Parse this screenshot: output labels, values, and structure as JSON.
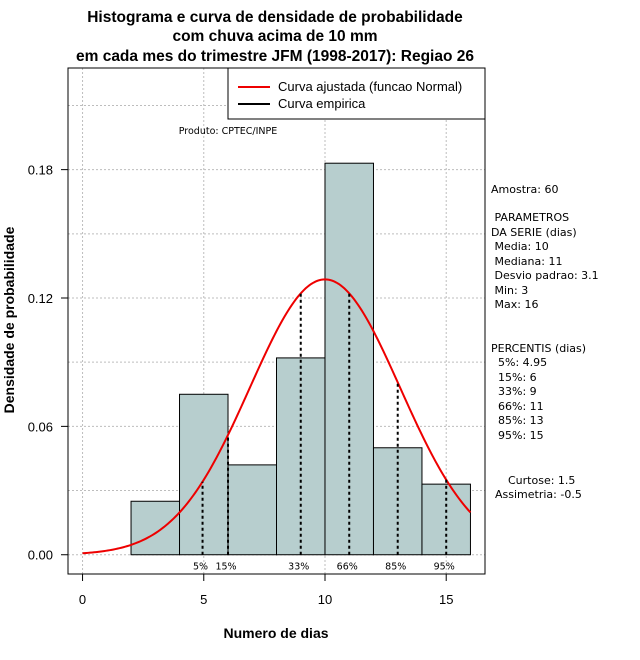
{
  "chart_data": {
    "type": "bar",
    "title_lines": [
      "Histograma e curva de densidade de probabilidade",
      "com chuva acima de 10 mm",
      "em cada mes do trimestre JFM (1998-2017): Regiao 26"
    ],
    "xlabel": "Numero de dias",
    "ylabel": "Densidade de probabilidade",
    "xlim": [
      -0.6,
      16.6
    ],
    "ylim": [
      -0.009,
      0.2275
    ],
    "x_ticks": [
      0,
      5,
      10,
      15
    ],
    "y_ticks": [
      0.0,
      0.06,
      0.12,
      0.18
    ],
    "y_tick_labels": [
      "0.00",
      "0.06",
      "0.12",
      "0.18"
    ],
    "grid": true,
    "bar_color": "#b7cece",
    "bins": [
      {
        "from": 2,
        "to": 4,
        "density": 0.025
      },
      {
        "from": 4,
        "to": 6,
        "density": 0.075
      },
      {
        "from": 6,
        "to": 8,
        "density": 0.042
      },
      {
        "from": 8,
        "to": 10,
        "density": 0.092
      },
      {
        "from": 10,
        "to": 12,
        "density": 0.183
      },
      {
        "from": 12,
        "to": 14,
        "density": 0.05
      },
      {
        "from": 14,
        "to": 16,
        "density": 0.033
      }
    ],
    "normal_curve": {
      "mean": 10,
      "sd": 3.1,
      "from": 0,
      "to": 16,
      "color": "#ee0000"
    },
    "percentile_lines": [
      {
        "x": 4.95,
        "label": "5%"
      },
      {
        "x": 6,
        "label": "15%"
      },
      {
        "x": 9,
        "label": "33%"
      },
      {
        "x": 11,
        "label": "66%"
      },
      {
        "x": 13,
        "label": "85%"
      },
      {
        "x": 15,
        "label": "95%"
      }
    ],
    "legend": {
      "position": "top-right",
      "entries": [
        {
          "label": "Curva ajustada (funcao Normal)",
          "color": "#ee0000"
        },
        {
          "label": "Curva empirica",
          "color": "#000000"
        }
      ]
    },
    "annotation": "Produto: CPTEC/INPE"
  },
  "side_panel": {
    "amostra": "Amostra: 60",
    "params_title_1": " PARAMETROS",
    "params_title_2": "DA SERIE (dias)",
    "params": [
      " Media: 10",
      " Mediana: 11",
      " Desvio padrao: 3.1",
      " Min: 3",
      " Max: 16"
    ],
    "percentis_title": "PERCENTIS (dias)",
    "percentis": [
      "  5%: 4.95",
      "  15%: 6",
      "  33%: 9",
      "  66%: 11",
      "  85%: 13",
      "  95%: 15"
    ],
    "curtose": "Curtose: 1.5",
    "assimetria": "Assimetria: -0.5"
  }
}
